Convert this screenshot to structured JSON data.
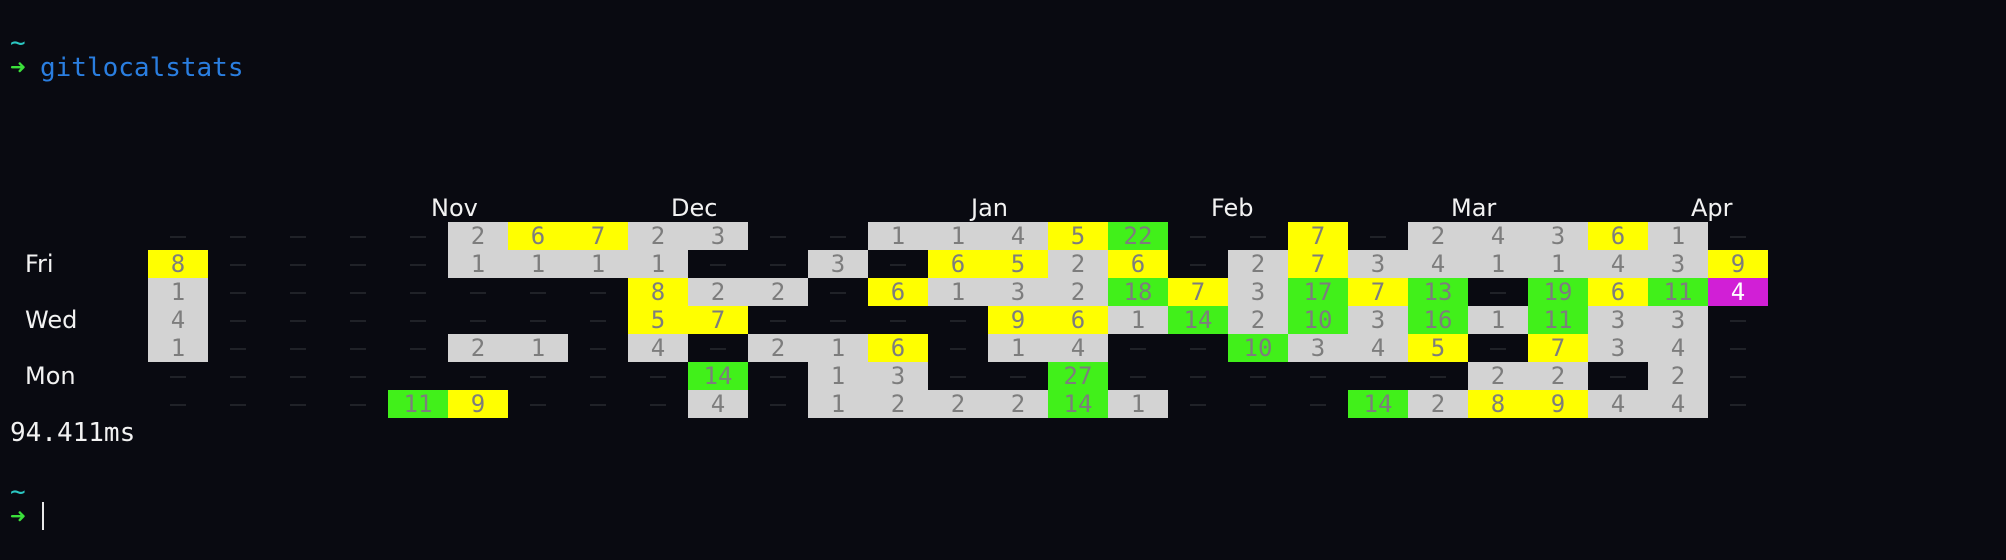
{
  "terminal": {
    "prompt1_tilde": "~",
    "prompt1_arrow": "➜",
    "command": "gitlocalstats",
    "elapsed": "94.411ms",
    "prompt2_tilde": "~",
    "prompt2_arrow": "➜"
  },
  "colors": {
    "background": "#090a11",
    "cell_gray": "#d3d3d3",
    "cell_yellow": "#ffff00",
    "cell_green": "#41f01a",
    "cell_magenta": "#d11fd6",
    "text_gray": "#7d7d7d",
    "text_white": "#ffffff"
  },
  "chart_data": {
    "type": "heatmap",
    "title": "",
    "month_labels": [
      {
        "label": "Nov",
        "week": 5
      },
      {
        "label": "Dec",
        "week": 9
      },
      {
        "label": "Jan",
        "week": 14
      },
      {
        "label": "Feb",
        "week": 18
      },
      {
        "label": "Mar",
        "week": 22
      },
      {
        "label": "Apr",
        "week": 26
      }
    ],
    "day_labels": [
      {
        "label": "Fri",
        "row": 1
      },
      {
        "label": "Wed",
        "row": 3
      },
      {
        "label": "Mon",
        "row": 5
      }
    ],
    "weeks": 27,
    "rows": 7,
    "cells": [
      {
        "week": 0,
        "row": 1,
        "value": 8,
        "color": "yellow"
      },
      {
        "week": 0,
        "row": 2,
        "value": 1,
        "color": "gray"
      },
      {
        "week": 0,
        "row": 3,
        "value": 4,
        "color": "gray"
      },
      {
        "week": 0,
        "row": 4,
        "value": 1,
        "color": "gray"
      },
      {
        "week": 4,
        "row": 6,
        "value": 11,
        "color": "green"
      },
      {
        "week": 5,
        "row": 6,
        "value": 9,
        "color": "yellow"
      },
      {
        "week": 5,
        "row": 0,
        "value": 2,
        "color": "gray"
      },
      {
        "week": 5,
        "row": 1,
        "value": 1,
        "color": "gray"
      },
      {
        "week": 5,
        "row": 4,
        "value": 2,
        "color": "gray"
      },
      {
        "week": 6,
        "row": 0,
        "value": 6,
        "color": "yellow"
      },
      {
        "week": 6,
        "row": 1,
        "value": 1,
        "color": "gray"
      },
      {
        "week": 6,
        "row": 4,
        "value": 1,
        "color": "gray"
      },
      {
        "week": 7,
        "row": 0,
        "value": 7,
        "color": "yellow"
      },
      {
        "week": 7,
        "row": 1,
        "value": 1,
        "color": "gray"
      },
      {
        "week": 8,
        "row": 0,
        "value": 2,
        "color": "gray"
      },
      {
        "week": 8,
        "row": 1,
        "value": 1,
        "color": "gray"
      },
      {
        "week": 8,
        "row": 2,
        "value": 8,
        "color": "yellow"
      },
      {
        "week": 8,
        "row": 3,
        "value": 5,
        "color": "yellow"
      },
      {
        "week": 8,
        "row": 4,
        "value": 4,
        "color": "gray"
      },
      {
        "week": 9,
        "row": 0,
        "value": 3,
        "color": "gray"
      },
      {
        "week": 9,
        "row": 2,
        "value": 2,
        "color": "gray"
      },
      {
        "week": 9,
        "row": 3,
        "value": 7,
        "color": "yellow"
      },
      {
        "week": 9,
        "row": 5,
        "value": 14,
        "color": "green"
      },
      {
        "week": 9,
        "row": 6,
        "value": 4,
        "color": "gray"
      },
      {
        "week": 10,
        "row": 2,
        "value": 2,
        "color": "gray"
      },
      {
        "week": 10,
        "row": 4,
        "value": 2,
        "color": "gray"
      },
      {
        "week": 11,
        "row": 1,
        "value": 3,
        "color": "gray"
      },
      {
        "week": 11,
        "row": 4,
        "value": 1,
        "color": "gray"
      },
      {
        "week": 11,
        "row": 5,
        "value": 1,
        "color": "gray"
      },
      {
        "week": 11,
        "row": 6,
        "value": 1,
        "color": "gray"
      },
      {
        "week": 12,
        "row": 0,
        "value": 1,
        "color": "gray"
      },
      {
        "week": 12,
        "row": 2,
        "value": 6,
        "color": "yellow"
      },
      {
        "week": 12,
        "row": 4,
        "value": 6,
        "color": "yellow"
      },
      {
        "week": 12,
        "row": 5,
        "value": 3,
        "color": "gray"
      },
      {
        "week": 12,
        "row": 6,
        "value": 2,
        "color": "gray"
      },
      {
        "week": 13,
        "row": 0,
        "value": 1,
        "color": "gray"
      },
      {
        "week": 13,
        "row": 1,
        "value": 6,
        "color": "yellow"
      },
      {
        "week": 13,
        "row": 2,
        "value": 1,
        "color": "gray"
      },
      {
        "week": 13,
        "row": 6,
        "value": 2,
        "color": "gray"
      },
      {
        "week": 14,
        "row": 0,
        "value": 4,
        "color": "gray"
      },
      {
        "week": 14,
        "row": 1,
        "value": 5,
        "color": "yellow"
      },
      {
        "week": 14,
        "row": 2,
        "value": 3,
        "color": "gray"
      },
      {
        "week": 14,
        "row": 3,
        "value": 9,
        "color": "yellow"
      },
      {
        "week": 14,
        "row": 4,
        "value": 1,
        "color": "gray"
      },
      {
        "week": 14,
        "row": 6,
        "value": 2,
        "color": "gray"
      },
      {
        "week": 15,
        "row": 0,
        "value": 5,
        "color": "yellow"
      },
      {
        "week": 15,
        "row": 1,
        "value": 2,
        "color": "gray"
      },
      {
        "week": 15,
        "row": 2,
        "value": 2,
        "color": "gray"
      },
      {
        "week": 15,
        "row": 3,
        "value": 6,
        "color": "yellow"
      },
      {
        "week": 15,
        "row": 4,
        "value": 4,
        "color": "gray"
      },
      {
        "week": 15,
        "row": 5,
        "value": 27,
        "color": "green"
      },
      {
        "week": 15,
        "row": 6,
        "value": 14,
        "color": "green"
      },
      {
        "week": 16,
        "row": 0,
        "value": 22,
        "color": "green"
      },
      {
        "week": 16,
        "row": 1,
        "value": 6,
        "color": "yellow"
      },
      {
        "week": 16,
        "row": 2,
        "value": 18,
        "color": "green"
      },
      {
        "week": 16,
        "row": 3,
        "value": 1,
        "color": "gray"
      },
      {
        "week": 16,
        "row": 6,
        "value": 1,
        "color": "gray"
      },
      {
        "week": 17,
        "row": 2,
        "value": 7,
        "color": "yellow"
      },
      {
        "week": 17,
        "row": 3,
        "value": 14,
        "color": "green"
      },
      {
        "week": 18,
        "row": 1,
        "value": 2,
        "color": "gray"
      },
      {
        "week": 18,
        "row": 2,
        "value": 3,
        "color": "gray"
      },
      {
        "week": 18,
        "row": 3,
        "value": 2,
        "color": "gray"
      },
      {
        "week": 18,
        "row": 4,
        "value": 10,
        "color": "green"
      },
      {
        "week": 19,
        "row": 0,
        "value": 7,
        "color": "yellow"
      },
      {
        "week": 19,
        "row": 1,
        "value": 7,
        "color": "yellow"
      },
      {
        "week": 19,
        "row": 2,
        "value": 17,
        "color": "green"
      },
      {
        "week": 19,
        "row": 3,
        "value": 10,
        "color": "green"
      },
      {
        "week": 19,
        "row": 4,
        "value": 3,
        "color": "gray"
      },
      {
        "week": 20,
        "row": 1,
        "value": 3,
        "color": "gray"
      },
      {
        "week": 20,
        "row": 2,
        "value": 7,
        "color": "yellow"
      },
      {
        "week": 20,
        "row": 3,
        "value": 3,
        "color": "gray"
      },
      {
        "week": 20,
        "row": 4,
        "value": 4,
        "color": "gray"
      },
      {
        "week": 20,
        "row": 6,
        "value": 14,
        "color": "green"
      },
      {
        "week": 21,
        "row": 0,
        "value": 2,
        "color": "gray"
      },
      {
        "week": 21,
        "row": 1,
        "value": 4,
        "color": "gray"
      },
      {
        "week": 21,
        "row": 2,
        "value": 13,
        "color": "green"
      },
      {
        "week": 21,
        "row": 3,
        "value": 16,
        "color": "green"
      },
      {
        "week": 21,
        "row": 4,
        "value": 5,
        "color": "yellow"
      },
      {
        "week": 21,
        "row": 6,
        "value": 2,
        "color": "gray"
      },
      {
        "week": 22,
        "row": 0,
        "value": 4,
        "color": "gray"
      },
      {
        "week": 22,
        "row": 1,
        "value": 1,
        "color": "gray"
      },
      {
        "week": 22,
        "row": 3,
        "value": 1,
        "color": "gray"
      },
      {
        "week": 22,
        "row": 5,
        "value": 2,
        "color": "gray"
      },
      {
        "week": 22,
        "row": 6,
        "value": 8,
        "color": "yellow"
      },
      {
        "week": 23,
        "row": 0,
        "value": 3,
        "color": "gray"
      },
      {
        "week": 23,
        "row": 1,
        "value": 1,
        "color": "gray"
      },
      {
        "week": 23,
        "row": 2,
        "value": 19,
        "color": "green"
      },
      {
        "week": 23,
        "row": 3,
        "value": 11,
        "color": "green"
      },
      {
        "week": 23,
        "row": 4,
        "value": 7,
        "color": "yellow"
      },
      {
        "week": 23,
        "row": 5,
        "value": 2,
        "color": "gray"
      },
      {
        "week": 23,
        "row": 6,
        "value": 9,
        "color": "yellow"
      },
      {
        "week": 24,
        "row": 0,
        "value": 6,
        "color": "yellow"
      },
      {
        "week": 24,
        "row": 1,
        "value": 4,
        "color": "gray"
      },
      {
        "week": 24,
        "row": 2,
        "value": 6,
        "color": "yellow"
      },
      {
        "week": 24,
        "row": 3,
        "value": 3,
        "color": "gray"
      },
      {
        "week": 24,
        "row": 4,
        "value": 3,
        "color": "gray"
      },
      {
        "week": 24,
        "row": 6,
        "value": 4,
        "color": "gray"
      },
      {
        "week": 25,
        "row": 0,
        "value": 1,
        "color": "gray"
      },
      {
        "week": 25,
        "row": 1,
        "value": 3,
        "color": "gray"
      },
      {
        "week": 25,
        "row": 2,
        "value": 11,
        "color": "green"
      },
      {
        "week": 25,
        "row": 3,
        "value": 3,
        "color": "gray"
      },
      {
        "week": 25,
        "row": 4,
        "value": 4,
        "color": "gray"
      },
      {
        "week": 25,
        "row": 5,
        "value": 2,
        "color": "gray"
      },
      {
        "week": 25,
        "row": 6,
        "value": 4,
        "color": "gray"
      },
      {
        "week": 26,
        "row": 1,
        "value": 9,
        "color": "yellow"
      },
      {
        "week": 26,
        "row": 2,
        "value": 4,
        "color": "magenta"
      }
    ]
  }
}
